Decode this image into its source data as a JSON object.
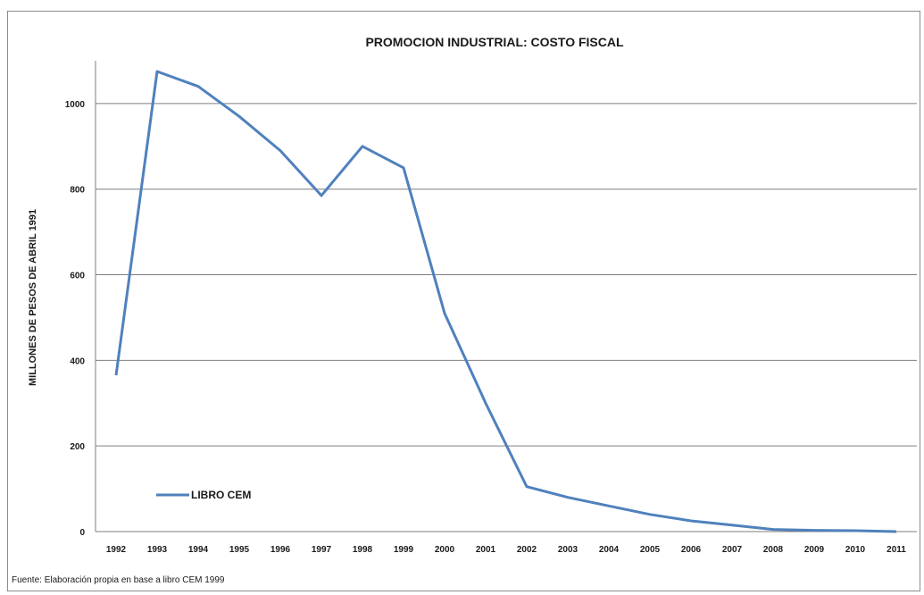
{
  "chart_data": {
    "type": "line",
    "title": "PROMOCION INDUSTRIAL: COSTO FISCAL",
    "xlabel": "",
    "ylabel": "MILLONES DE PESOS DE ABRIL 1991",
    "categories": [
      "1992",
      "1993",
      "1994",
      "1995",
      "1996",
      "1997",
      "1998",
      "1999",
      "2000",
      "2001",
      "2002",
      "2003",
      "2004",
      "2005",
      "2006",
      "2007",
      "2008",
      "2009",
      "2010",
      "2011"
    ],
    "series": [
      {
        "name": "LIBRO CEM",
        "color": "#4f81bd",
        "values": [
          365,
          1075,
          1040,
          970,
          890,
          785,
          900,
          850,
          510,
          300,
          105,
          80,
          60,
          40,
          25,
          15,
          5,
          3,
          2,
          0
        ]
      }
    ],
    "ylim": [
      0,
      1100
    ],
    "yticks": [
      0,
      200,
      400,
      600,
      800,
      1000
    ],
    "grid": true,
    "legend_position": "bottom-left",
    "source": "Fuente: Elaboración propia en base a libro CEM 1999"
  }
}
